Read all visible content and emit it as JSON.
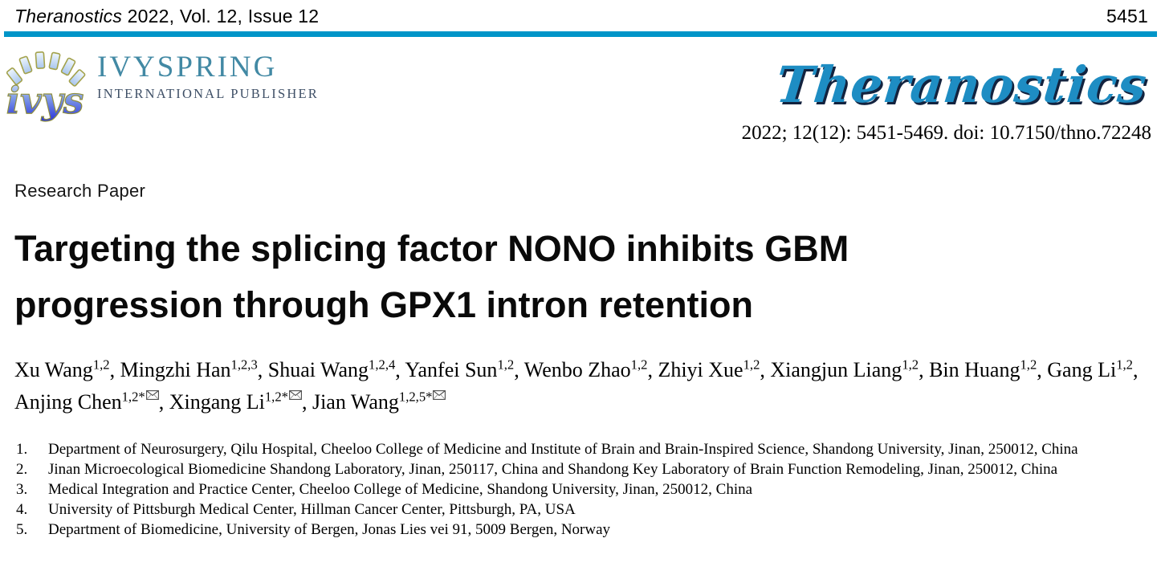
{
  "header": {
    "journal_name_italic": "Theranostics",
    "journal_rest": " 2022, Vol. 12, Issue 12",
    "page_number": "5451"
  },
  "publisher": {
    "ring_letters": "ivys",
    "name": "IVYSPRING",
    "subtitle": "INTERNATIONAL PUBLISHER"
  },
  "journal_logo": {
    "text": "Theranostics"
  },
  "citation": "2022; 12(12): 5451-5469. doi: 10.7150/thno.72248",
  "article": {
    "type_label": "Research Paper",
    "title_lines": [
      "Targeting the splicing factor NONO inhibits GBM",
      "progression through GPX1 intron retention"
    ]
  },
  "authors": {
    "list": [
      {
        "name": "Xu Wang",
        "sup": "1,2",
        "corresponding": false
      },
      {
        "name": "Mingzhi Han",
        "sup": "1,2,3",
        "corresponding": false
      },
      {
        "name": "Shuai Wang",
        "sup": "1,2,4",
        "corresponding": false
      },
      {
        "name": "Yanfei Sun",
        "sup": "1,2",
        "corresponding": false
      },
      {
        "name": "Wenbo Zhao",
        "sup": "1,2",
        "corresponding": false
      },
      {
        "name": "Zhiyi Xue",
        "sup": "1,2",
        "corresponding": false
      },
      {
        "name": "Xiangjun Liang",
        "sup": "1,2",
        "corresponding": false
      },
      {
        "name": "Bin Huang",
        "sup": "1,2",
        "corresponding": false
      },
      {
        "name": "Gang Li",
        "sup": "1,2",
        "corresponding": false
      },
      {
        "name": "Anjing Chen",
        "sup": "1,2*",
        "corresponding": true
      },
      {
        "name": "Xingang Li",
        "sup": "1,2*",
        "corresponding": true
      },
      {
        "name": "Jian Wang",
        "sup": "1,2,5*",
        "corresponding": true
      }
    ],
    "separator": ", "
  },
  "affiliations": [
    "Department of Neurosurgery, Qilu Hospital, Cheeloo College of Medicine and Institute of Brain and Brain-Inspired Science, Shandong University, Jinan, 250012, China",
    "Jinan Microecological Biomedicine Shandong Laboratory, Jinan, 250117, China and Shandong Key Laboratory of Brain Function Remodeling, Jinan, 250012, China",
    "Medical Integration and Practice Center, Cheeloo College of Medicine, Shandong University, Jinan, 250012, China",
    "University of Pittsburgh Medical Center, Hillman Cancer Center, Pittsburgh, PA, USA",
    "Department of Biomedicine, University of Bergen, Jonas Lies vei 91, 5009 Bergen, Norway"
  ],
  "colors": {
    "rule_blue": "#0095c8",
    "journal_logo_blue": "#1e8dc3",
    "journal_logo_shadow": "#13233f",
    "publisher_teal": "#4289a4",
    "publisher_dark": "#3e4f66"
  }
}
